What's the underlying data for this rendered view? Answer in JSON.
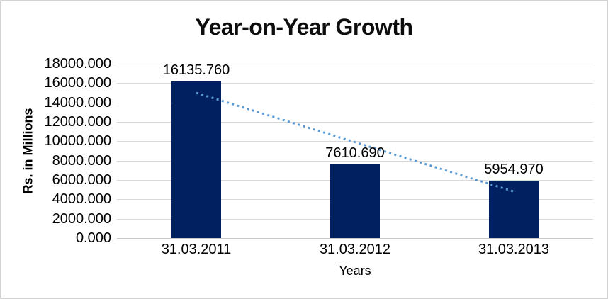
{
  "chart_data": {
    "type": "bar",
    "title": "Year-on-Year Growth",
    "xlabel": "Years",
    "ylabel": "Rs. in Millions",
    "categories": [
      "31.03.2011",
      "31.03.2012",
      "31.03.2013"
    ],
    "values": [
      16135.76,
      7610.69,
      5954.97
    ],
    "data_labels": [
      "16135.760",
      "7610.690",
      "5954.970"
    ],
    "ylim": [
      0,
      18000
    ],
    "y_tick_step": 2000,
    "y_tick_labels": [
      "0.000",
      "2000.000",
      "4000.000",
      "6000.000",
      "8000.000",
      "10000.000",
      "12000.000",
      "14000.000",
      "16000.000",
      "18000.000"
    ],
    "grid": true,
    "legend_position": "none",
    "trendline": {
      "type": "linear",
      "style": "dotted",
      "start_value": 14990.9,
      "end_value": 4810.1
    },
    "colors": {
      "bar": "#002060",
      "trendline": "#5B9BD5",
      "gridline": "#D9D9D9",
      "axis_line": "#C6C6C6",
      "text": "#000000",
      "frame_border": "#D2D2D2",
      "background": "#FFFFFF"
    }
  }
}
